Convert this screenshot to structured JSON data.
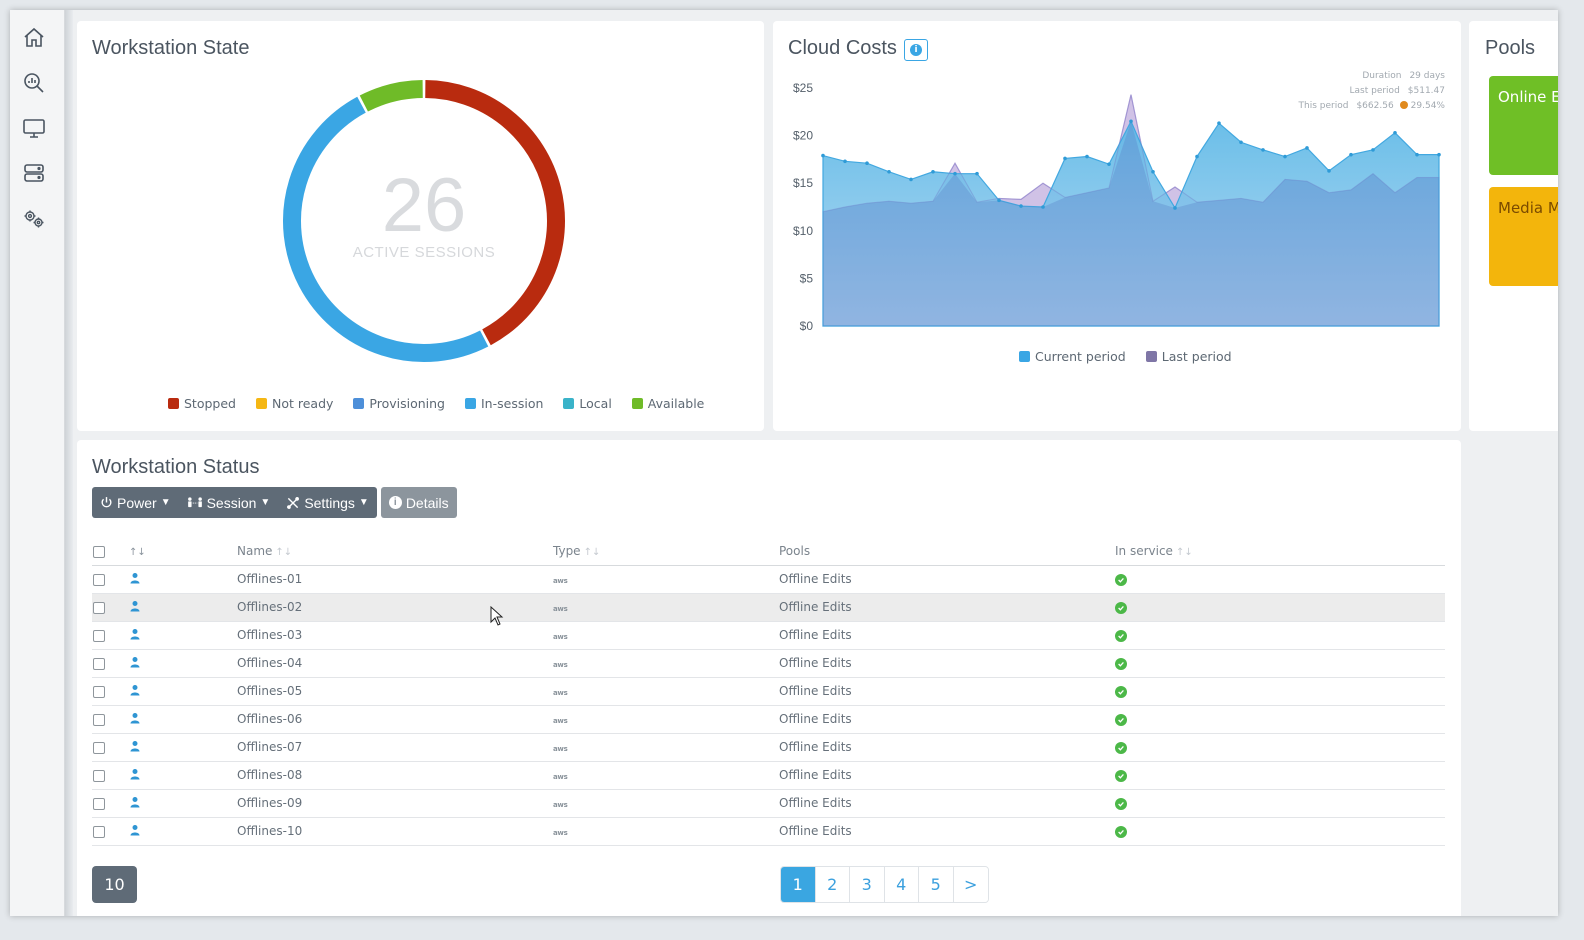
{
  "nav": {
    "items": [
      {
        "name": "home-icon"
      },
      {
        "name": "analytics-icon"
      },
      {
        "name": "monitor-icon"
      },
      {
        "name": "server-icon"
      },
      {
        "name": "settings-gears-icon"
      }
    ]
  },
  "workstation_state": {
    "title": "Workstation State",
    "count": "26",
    "count_label": "ACTIVE SESSIONS",
    "legend": [
      {
        "label": "Stopped",
        "color": "#b92b0f"
      },
      {
        "label": "Not ready",
        "color": "#f5b714"
      },
      {
        "label": "Provisioning",
        "color": "#4d8fd9"
      },
      {
        "label": "In-session",
        "color": "#3aa6e4"
      },
      {
        "label": "Local",
        "color": "#3ab3c9"
      },
      {
        "label": "Available",
        "color": "#6fbb28"
      }
    ],
    "segments": [
      {
        "label": "Stopped",
        "value": 11,
        "color": "#b92b0f"
      },
      {
        "label": "In-session",
        "value": 13,
        "color": "#3aa6e4"
      },
      {
        "label": "Available",
        "value": 2,
        "color": "#6fbb28"
      }
    ]
  },
  "cloud_costs": {
    "title": "Cloud Costs",
    "stats": [
      {
        "label": "Duration",
        "value": "29 days"
      },
      {
        "label": "Last period",
        "value": "$511.47"
      },
      {
        "label": "This period",
        "value": "$662.56"
      }
    ],
    "change": "29.54%",
    "legend": [
      {
        "label": "Current period",
        "color": "#3aa6e4"
      },
      {
        "label": "Last period",
        "color": "#7f76a6"
      }
    ]
  },
  "chart_data": {
    "type": "area",
    "ylim": [
      0,
      25
    ],
    "y_ticks": [
      "$0",
      "$5",
      "$10",
      "$15",
      "$20",
      "$25"
    ],
    "series": [
      {
        "name": "Current period",
        "values": [
          17.9,
          17.3,
          17.1,
          16.2,
          15.4,
          16.2,
          16.0,
          16.0,
          13.2,
          12.6,
          12.5,
          17.6,
          17.8,
          17.0,
          21.5,
          16.2,
          12.4,
          17.8,
          21.3,
          19.3,
          18.5,
          17.8,
          18.7,
          16.3,
          18.0,
          18.5,
          20.3,
          18.0,
          18.0
        ]
      },
      {
        "name": "Last period",
        "values": [
          12.0,
          12.5,
          12.9,
          13.1,
          12.9,
          13.1,
          17.1,
          13.0,
          13.4,
          13.3,
          15.0,
          13.5,
          14.0,
          14.5,
          24.3,
          13.1,
          14.6,
          13.0,
          13.2,
          13.4,
          13.0,
          15.4,
          15.2,
          14.0,
          14.3,
          16.0,
          14.0,
          15.6,
          15.6
        ]
      }
    ]
  },
  "pools": {
    "title": "Pools",
    "tiles": [
      {
        "label": "Online E",
        "color": "#6fbf26"
      },
      {
        "label": "Media M",
        "color": "#f3b50c"
      }
    ]
  },
  "status": {
    "title": "Workstation Status",
    "toolbar": {
      "power": "Power",
      "session": "Session",
      "settings": "Settings",
      "details": "Details"
    },
    "columns": {
      "name": "Name",
      "type": "Type",
      "pools": "Pools",
      "in_service": "In service"
    },
    "type_label": "aws",
    "rows": [
      {
        "name": "Offlines-01",
        "pool": "Offline Edits"
      },
      {
        "name": "Offlines-02",
        "pool": "Offline Edits"
      },
      {
        "name": "Offlines-03",
        "pool": "Offline Edits"
      },
      {
        "name": "Offlines-04",
        "pool": "Offline Edits"
      },
      {
        "name": "Offlines-05",
        "pool": "Offline Edits"
      },
      {
        "name": "Offlines-06",
        "pool": "Offline Edits"
      },
      {
        "name": "Offlines-07",
        "pool": "Offline Edits"
      },
      {
        "name": "Offlines-08",
        "pool": "Offline Edits"
      },
      {
        "name": "Offlines-09",
        "pool": "Offline Edits"
      },
      {
        "name": "Offlines-10",
        "pool": "Offline Edits"
      }
    ],
    "page_size": "10",
    "pages": [
      "1",
      "2",
      "3",
      "4",
      "5",
      ">"
    ],
    "current_page": "1"
  }
}
